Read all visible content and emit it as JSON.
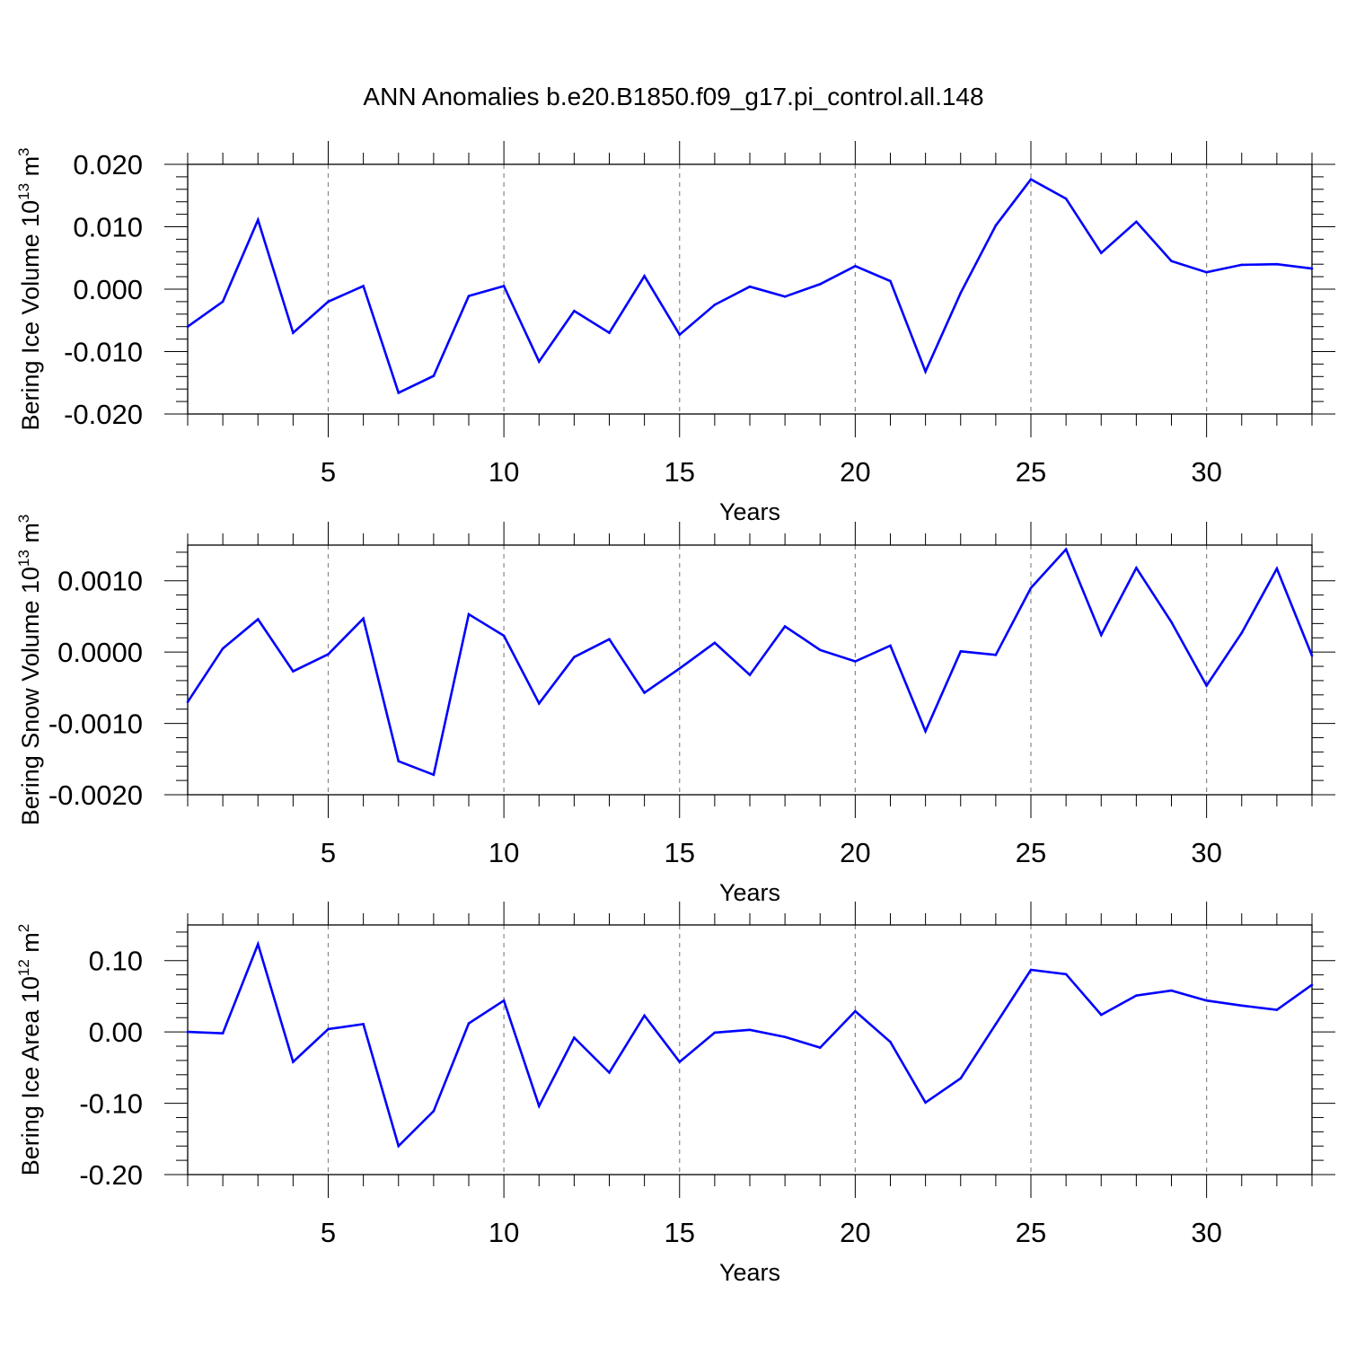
{
  "title": "ANN Anomalies b.e20.B1850.f09_g17.pi_control.all.148",
  "colors": {
    "line": "#0000ff",
    "axis": "#000000",
    "grid": "#888888",
    "background": "#ffffff"
  },
  "chart_data": [
    {
      "type": "line",
      "ylabel": {
        "text": "Bering Ice Volume 10",
        "sup": "13",
        "unit": " m",
        "unit_sup": "3"
      },
      "xlabel": "Years",
      "xlim": [
        1,
        33
      ],
      "ylim": [
        -0.02,
        0.02
      ],
      "xticks": [
        5,
        10,
        15,
        20,
        25,
        30
      ],
      "xtick_labels": [
        "5",
        "10",
        "15",
        "20",
        "25",
        "30"
      ],
      "yticks": [
        -0.02,
        -0.01,
        0.0,
        0.01,
        0.02
      ],
      "ytick_labels": [
        "-0.020",
        "-0.010",
        "0.000",
        "0.010",
        "0.020"
      ],
      "grid_x": [
        5,
        10,
        15,
        20,
        25,
        30
      ],
      "series": [
        {
          "name": "Bering Ice Volume",
          "x": [
            1,
            2,
            3,
            4,
            5,
            6,
            7,
            8,
            9,
            10,
            11,
            12,
            13,
            14,
            15,
            16,
            17,
            18,
            19,
            20,
            21,
            22,
            23,
            24,
            25,
            26,
            27,
            28,
            29,
            30,
            31,
            32,
            33
          ],
          "values": [
            -0.006,
            -0.002,
            0.0111,
            -0.007,
            -0.002,
            0.0005,
            -0.0166,
            -0.0139,
            -0.0011,
            0.0005,
            -0.0116,
            -0.0035,
            -0.007,
            0.0021,
            -0.0073,
            -0.0025,
            0.0004,
            -0.0012,
            0.0008,
            0.0037,
            0.0013,
            -0.0132,
            -0.0006,
            0.0102,
            0.0176,
            0.0145,
            0.0058,
            0.0108,
            0.0045,
            0.0027,
            0.0039,
            0.004,
            0.0033
          ]
        }
      ]
    },
    {
      "type": "line",
      "ylabel": {
        "text": "Bering Snow Volume 10",
        "sup": "13",
        "unit": " m",
        "unit_sup": "3"
      },
      "xlabel": "Years",
      "xlim": [
        1,
        33
      ],
      "ylim": [
        -0.002,
        0.0015
      ],
      "xticks": [
        5,
        10,
        15,
        20,
        25,
        30
      ],
      "xtick_labels": [
        "5",
        "10",
        "15",
        "20",
        "25",
        "30"
      ],
      "yticks": [
        -0.002,
        -0.001,
        0.0,
        0.001
      ],
      "ytick_labels": [
        "-0.0020",
        "-0.0010",
        "0.0000",
        "0.0010"
      ],
      "grid_x": [
        5,
        10,
        15,
        20,
        25,
        30
      ],
      "series": [
        {
          "name": "Bering Snow Volume",
          "x": [
            1,
            2,
            3,
            4,
            5,
            6,
            7,
            8,
            9,
            10,
            11,
            12,
            13,
            14,
            15,
            16,
            17,
            18,
            19,
            20,
            21,
            22,
            23,
            24,
            25,
            26,
            27,
            28,
            29,
            30,
            31,
            32,
            33
          ],
          "values": [
            -0.0007,
            5e-05,
            0.00046,
            -0.00027,
            -3e-05,
            0.00047,
            -0.00153,
            -0.00172,
            0.00053,
            0.00023,
            -0.00072,
            -7e-05,
            0.00018,
            -0.00057,
            -0.00023,
            0.00013,
            -0.00032,
            0.00036,
            3e-05,
            -0.00013,
            9e-05,
            -0.00111,
            1e-05,
            -4e-05,
            0.0009,
            0.00144,
            0.00024,
            0.00118,
            0.00042,
            -0.00047,
            0.00027,
            0.00117,
            -5e-05
          ]
        }
      ]
    },
    {
      "type": "line",
      "ylabel": {
        "text": "Bering Ice Area 10",
        "sup": "12",
        "unit": " m",
        "unit_sup": "2"
      },
      "xlabel": "Years",
      "xlim": [
        1,
        33
      ],
      "ylim": [
        -0.2,
        0.15
      ],
      "xticks": [
        5,
        10,
        15,
        20,
        25,
        30
      ],
      "xtick_labels": [
        "5",
        "10",
        "15",
        "20",
        "25",
        "30"
      ],
      "yticks": [
        -0.2,
        -0.1,
        0.0,
        0.1
      ],
      "ytick_labels": [
        "-0.20",
        "-0.10",
        "0.00",
        "0.10"
      ],
      "grid_x": [
        5,
        10,
        15,
        20,
        25,
        30
      ],
      "series": [
        {
          "name": "Bering Ice Area",
          "x": [
            1,
            2,
            3,
            4,
            5,
            6,
            7,
            8,
            9,
            10,
            11,
            12,
            13,
            14,
            15,
            16,
            17,
            18,
            19,
            20,
            21,
            22,
            23,
            24,
            25,
            26,
            27,
            28,
            29,
            30,
            31,
            32,
            33
          ],
          "values": [
            0.0,
            -0.002,
            0.123,
            -0.042,
            0.004,
            0.011,
            -0.16,
            -0.111,
            0.012,
            0.044,
            -0.104,
            -0.008,
            -0.057,
            0.023,
            -0.042,
            -0.001,
            0.003,
            -0.007,
            -0.022,
            0.029,
            -0.014,
            -0.099,
            -0.065,
            0.011,
            0.087,
            0.081,
            0.024,
            0.051,
            0.058,
            0.044,
            0.037,
            0.031,
            0.066
          ]
        }
      ]
    }
  ]
}
